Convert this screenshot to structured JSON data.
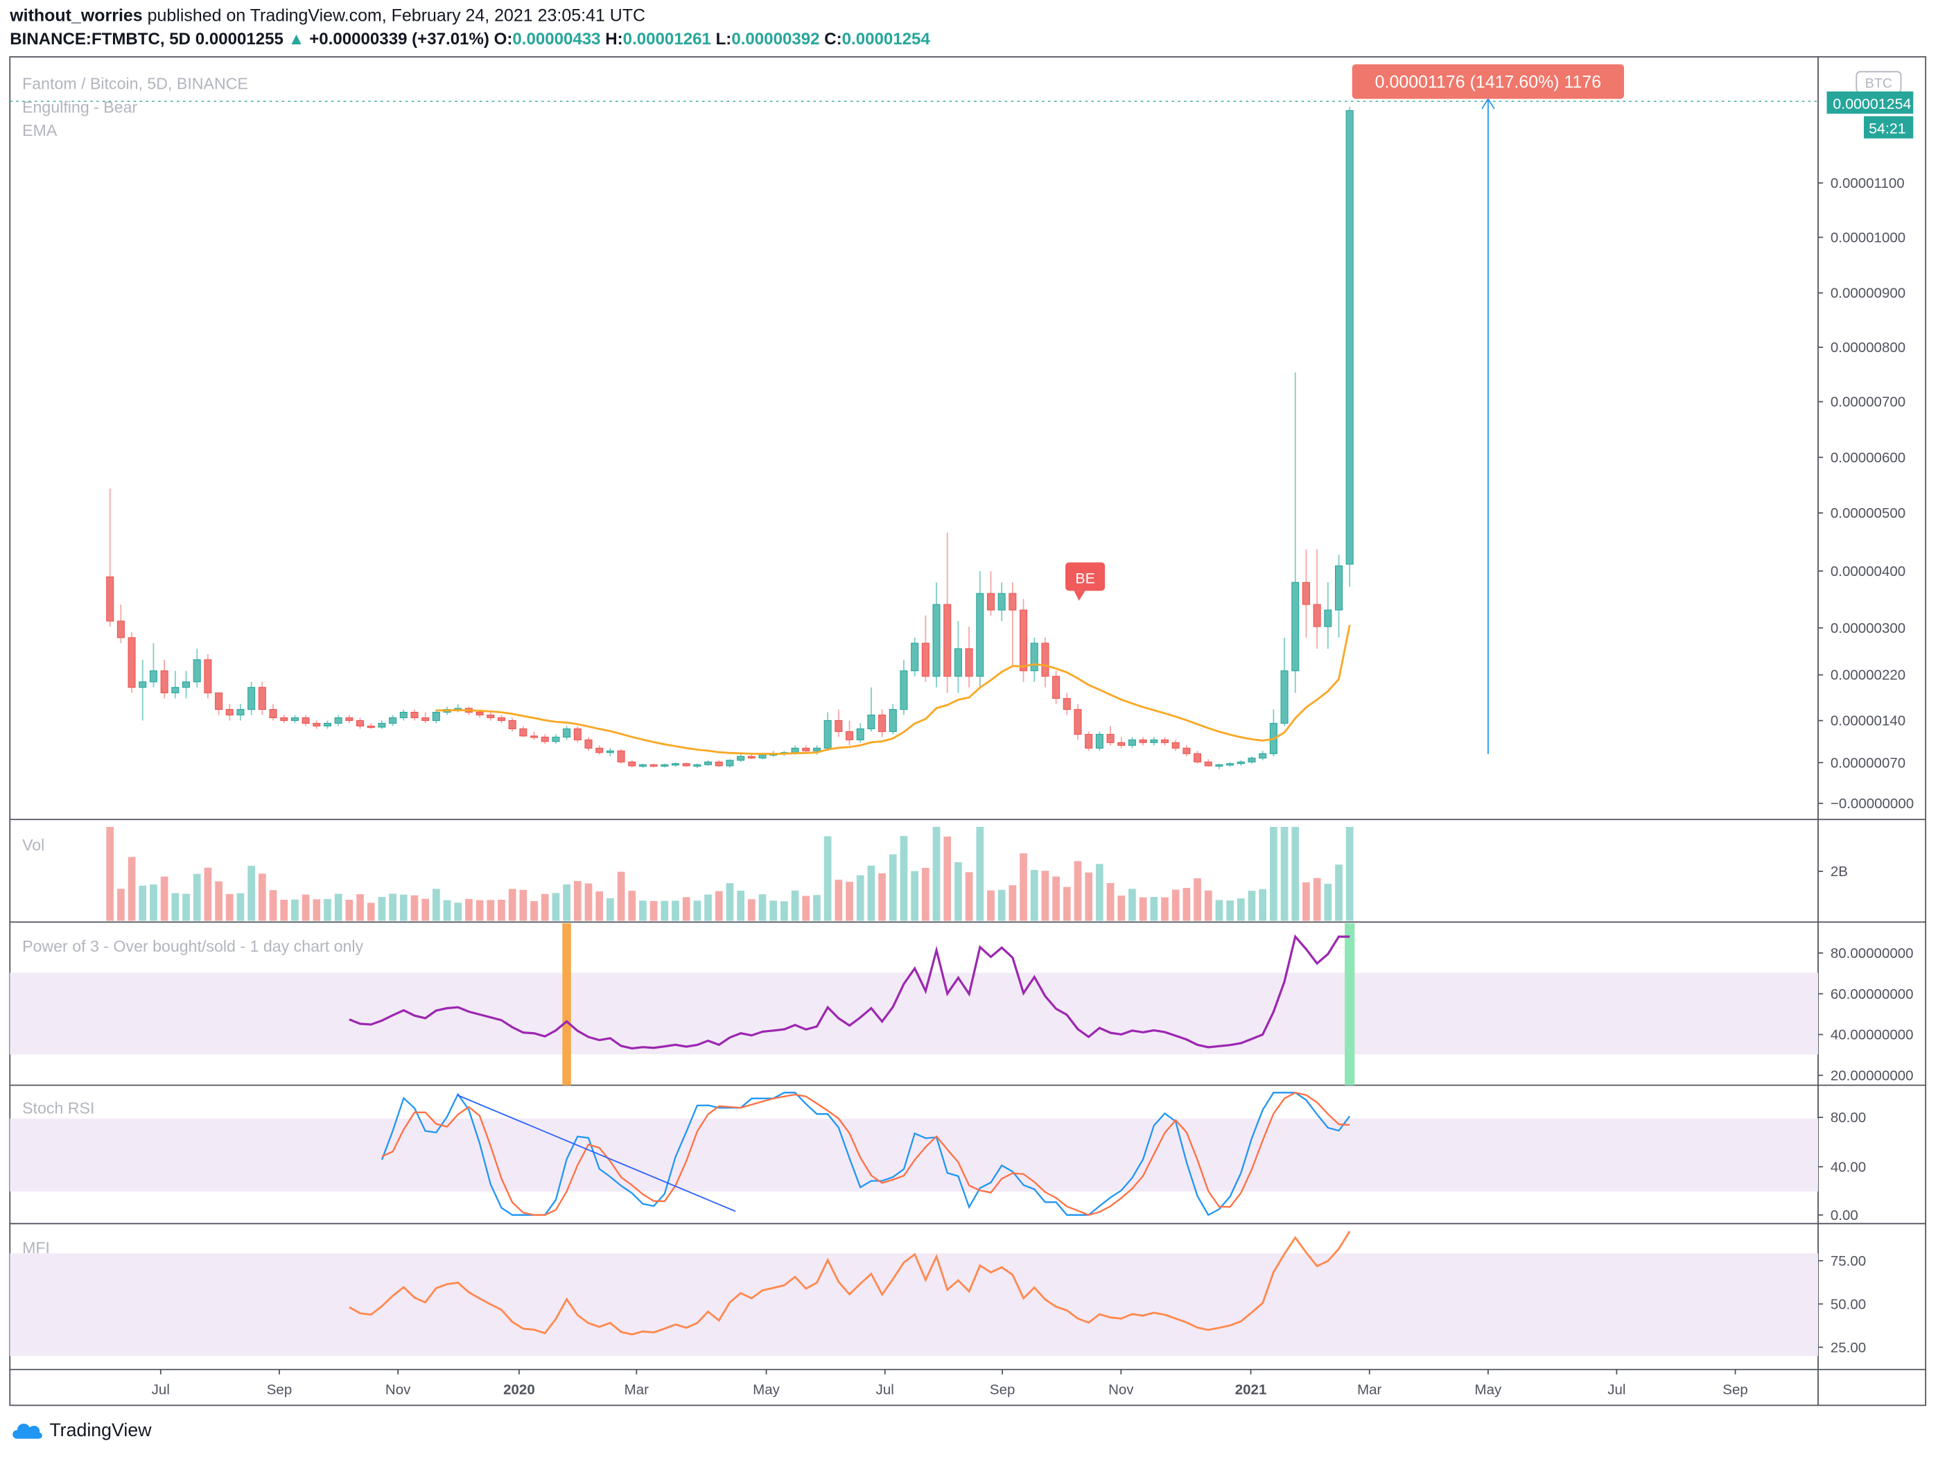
{
  "header": {
    "author": "without_worries",
    "published_text": "published on TradingView.com, February 24, 2021 23:05:41 UTC",
    "symbol": "BINANCE:FTMBTC, 5D",
    "last": "0.00001255",
    "change": "+0.00000339 (+37.01%)",
    "o_label": "O:",
    "o": "0.00000433",
    "h_label": "H:",
    "h": "0.00001261",
    "l_label": "L:",
    "l": "0.00000392",
    "c_label": "C:",
    "c": "0.00001254"
  },
  "legend": {
    "title": "Fantom / Bitcoin, 5D, BINANCE",
    "pattern": "Engulfing - Bear",
    "ema": "EMA",
    "currency_badge": "BTC",
    "measure": "0.00001176 (1417.60%) 1176",
    "be_label": "BE",
    "price_tag": "0.00001254",
    "countdown": "54:21"
  },
  "panes": {
    "vol": "Vol",
    "p3": "Power of 3 - Over bought/sold - 1 day chart only",
    "stoch": "Stoch RSI",
    "mfi": "MFI"
  },
  "axes": {
    "price_ticks": [
      "0.00001100",
      "0.00001000",
      "0.00000900",
      "0.00000800",
      "0.00000700",
      "0.00000600",
      "0.00000500",
      "0.00000400",
      "0.00000300",
      "0.00000220",
      "0.00000140",
      "0.00000070",
      "−0.00000000"
    ],
    "vol_ticks": [
      "2B"
    ],
    "p3_ticks": [
      "80.00000000",
      "60.00000000",
      "40.00000000",
      "20.00000000"
    ],
    "stoch_ticks": [
      "80.00",
      "40.00",
      "0.00"
    ],
    "mfi_ticks": [
      "75.00",
      "50.00",
      "25.00"
    ],
    "time_labels": [
      "Jul",
      "Sep",
      "Nov",
      "2020",
      "Mar",
      "May",
      "Jul",
      "Sep",
      "Nov",
      "2021",
      "Mar",
      "May",
      "Jul",
      "Sep"
    ]
  },
  "colors": {
    "up": "#26a69a",
    "down": "#ef5350",
    "ema": "#f9a825",
    "p3": "#9c27b0",
    "stoch_k": "#2196f3",
    "stoch_d": "#ff7043",
    "mfi": "#ff8a50",
    "band": "#f3eaf7"
  },
  "footer": {
    "brand": "TradingView"
  },
  "chart_data": {
    "type": "candlestick",
    "title": "Fantom / Bitcoin, 5D, BINANCE",
    "ohlc_last": {
      "open": 4.33e-06,
      "high": 1.261e-05,
      "low": 3.92e-06,
      "close": 1.254e-05
    },
    "measured_move": {
      "change": 1.176e-05,
      "percent": 1417.6
    },
    "candles": [
      [
        4.1,
        5.7,
        3.2,
        3.3
      ],
      [
        3.3,
        3.6,
        2.9,
        3.0
      ],
      [
        3.0,
        3.1,
        2.0,
        2.1
      ],
      [
        2.1,
        2.6,
        1.5,
        2.2
      ],
      [
        2.2,
        2.9,
        2.1,
        2.4
      ],
      [
        2.4,
        2.6,
        1.9,
        2.0
      ],
      [
        2.0,
        2.4,
        1.9,
        2.1
      ],
      [
        2.1,
        2.4,
        1.9,
        2.2
      ],
      [
        2.2,
        2.8,
        2.1,
        2.6
      ],
      [
        2.6,
        2.7,
        1.9,
        2.0
      ],
      [
        2.0,
        2.0,
        1.6,
        1.7
      ],
      [
        1.7,
        1.8,
        1.5,
        1.6
      ],
      [
        1.6,
        1.8,
        1.5,
        1.7
      ],
      [
        1.7,
        2.2,
        1.6,
        2.1
      ],
      [
        2.1,
        2.2,
        1.6,
        1.7
      ],
      [
        1.7,
        1.8,
        1.5,
        1.55
      ],
      [
        1.55,
        1.6,
        1.45,
        1.5
      ],
      [
        1.5,
        1.6,
        1.45,
        1.55
      ],
      [
        1.55,
        1.6,
        1.4,
        1.45
      ],
      [
        1.45,
        1.5,
        1.35,
        1.4
      ],
      [
        1.4,
        1.5,
        1.35,
        1.45
      ],
      [
        1.45,
        1.6,
        1.4,
        1.55
      ],
      [
        1.55,
        1.6,
        1.45,
        1.5
      ],
      [
        1.5,
        1.55,
        1.35,
        1.4
      ],
      [
        1.4,
        1.45,
        1.35,
        1.38
      ],
      [
        1.38,
        1.5,
        1.35,
        1.45
      ],
      [
        1.45,
        1.6,
        1.4,
        1.55
      ],
      [
        1.55,
        1.7,
        1.5,
        1.65
      ],
      [
        1.65,
        1.7,
        1.5,
        1.55
      ],
      [
        1.55,
        1.65,
        1.45,
        1.5
      ],
      [
        1.5,
        1.7,
        1.45,
        1.65
      ],
      [
        1.65,
        1.75,
        1.6,
        1.7
      ],
      [
        1.7,
        1.8,
        1.65,
        1.72
      ],
      [
        1.72,
        1.75,
        1.6,
        1.65
      ],
      [
        1.65,
        1.7,
        1.55,
        1.6
      ],
      [
        1.6,
        1.65,
        1.5,
        1.55
      ],
      [
        1.55,
        1.6,
        1.45,
        1.5
      ],
      [
        1.5,
        1.55,
        1.3,
        1.35
      ],
      [
        1.35,
        1.4,
        1.2,
        1.22
      ],
      [
        1.22,
        1.3,
        1.15,
        1.2
      ],
      [
        1.2,
        1.25,
        1.08,
        1.12
      ],
      [
        1.12,
        1.25,
        1.08,
        1.2
      ],
      [
        1.2,
        1.4,
        1.15,
        1.35
      ],
      [
        1.35,
        1.4,
        1.1,
        1.15
      ],
      [
        1.15,
        1.2,
        0.95,
        1.0
      ],
      [
        1.0,
        1.05,
        0.88,
        0.92
      ],
      [
        0.92,
        1.0,
        0.85,
        0.95
      ],
      [
        0.95,
        0.98,
        0.72,
        0.75
      ],
      [
        0.75,
        0.78,
        0.65,
        0.68
      ],
      [
        0.68,
        0.72,
        0.64,
        0.7
      ],
      [
        0.7,
        0.72,
        0.65,
        0.68
      ],
      [
        0.68,
        0.72,
        0.65,
        0.7
      ],
      [
        0.7,
        0.74,
        0.66,
        0.72
      ],
      [
        0.72,
        0.74,
        0.66,
        0.68
      ],
      [
        0.68,
        0.72,
        0.64,
        0.7
      ],
      [
        0.7,
        0.78,
        0.68,
        0.75
      ],
      [
        0.75,
        0.78,
        0.66,
        0.68
      ],
      [
        0.68,
        0.8,
        0.65,
        0.78
      ],
      [
        0.78,
        0.9,
        0.75,
        0.85
      ],
      [
        0.85,
        0.9,
        0.8,
        0.82
      ],
      [
        0.82,
        0.9,
        0.8,
        0.88
      ],
      [
        0.88,
        0.95,
        0.84,
        0.9
      ],
      [
        0.9,
        0.95,
        0.86,
        0.92
      ],
      [
        0.92,
        1.05,
        0.88,
        1.0
      ],
      [
        1.0,
        1.05,
        0.9,
        0.95
      ],
      [
        0.95,
        1.05,
        0.88,
        1.0
      ],
      [
        1.0,
        1.65,
        0.95,
        1.5
      ],
      [
        1.5,
        1.7,
        1.2,
        1.3
      ],
      [
        1.3,
        1.5,
        1.05,
        1.15
      ],
      [
        1.15,
        1.45,
        1.1,
        1.35
      ],
      [
        1.35,
        2.1,
        1.3,
        1.6
      ],
      [
        1.6,
        1.7,
        1.2,
        1.3
      ],
      [
        1.3,
        1.8,
        1.25,
        1.7
      ],
      [
        1.7,
        2.6,
        1.6,
        2.4
      ],
      [
        2.4,
        3.0,
        2.3,
        2.9
      ],
      [
        2.9,
        3.4,
        2.2,
        2.3
      ],
      [
        2.3,
        4.0,
        2.1,
        3.6
      ],
      [
        3.6,
        4.9,
        2.0,
        2.3
      ],
      [
        2.3,
        3.3,
        2.0,
        2.8
      ],
      [
        2.8,
        3.2,
        2.1,
        2.3
      ],
      [
        2.3,
        4.2,
        2.1,
        3.8
      ],
      [
        3.8,
        4.2,
        3.4,
        3.5
      ],
      [
        3.5,
        4.0,
        3.3,
        3.8
      ],
      [
        3.8,
        4.0,
        2.5,
        3.5
      ],
      [
        3.5,
        3.7,
        2.2,
        2.4
      ],
      [
        2.4,
        3.0,
        2.2,
        2.9
      ],
      [
        2.9,
        3.0,
        2.1,
        2.3
      ],
      [
        2.3,
        2.4,
        1.8,
        1.9
      ],
      [
        1.9,
        2.0,
        1.6,
        1.7
      ],
      [
        1.7,
        1.8,
        1.15,
        1.25
      ],
      [
        1.25,
        1.3,
        0.95,
        1.0
      ],
      [
        1.0,
        1.3,
        0.95,
        1.25
      ],
      [
        1.25,
        1.4,
        1.05,
        1.1
      ],
      [
        1.1,
        1.2,
        1.0,
        1.05
      ],
      [
        1.05,
        1.2,
        1.0,
        1.15
      ],
      [
        1.15,
        1.2,
        1.05,
        1.1
      ],
      [
        1.1,
        1.2,
        1.05,
        1.15
      ],
      [
        1.15,
        1.2,
        1.05,
        1.1
      ],
      [
        1.1,
        1.15,
        0.95,
        1.0
      ],
      [
        1.0,
        1.05,
        0.85,
        0.9
      ],
      [
        0.9,
        0.95,
        0.72,
        0.75
      ],
      [
        0.75,
        0.8,
        0.66,
        0.68
      ],
      [
        0.68,
        0.72,
        0.62,
        0.7
      ],
      [
        0.7,
        0.75,
        0.66,
        0.72
      ],
      [
        0.72,
        0.78,
        0.68,
        0.75
      ],
      [
        0.75,
        0.85,
        0.72,
        0.82
      ],
      [
        0.82,
        0.95,
        0.78,
        0.9
      ],
      [
        0.9,
        1.7,
        0.85,
        1.45
      ],
      [
        1.45,
        3.0,
        1.4,
        2.4
      ],
      [
        2.4,
        7.8,
        2.0,
        4.0
      ],
      [
        4.0,
        4.6,
        3.0,
        3.6
      ],
      [
        3.6,
        4.6,
        2.8,
        3.2
      ],
      [
        3.2,
        4.0,
        2.8,
        3.5
      ],
      [
        3.5,
        4.5,
        3.0,
        4.3
      ],
      [
        4.33,
        12.61,
        3.92,
        12.54
      ]
    ],
    "volume_unit": "B",
    "stoch_rsi_range": [
      0,
      100
    ],
    "mfi_range": [
      0,
      100
    ]
  }
}
